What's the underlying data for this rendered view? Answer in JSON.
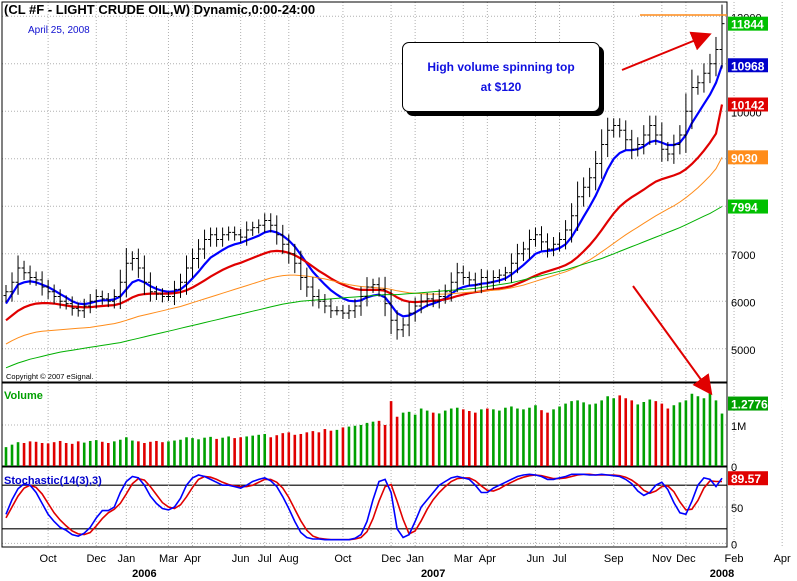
{
  "chart_data": {
    "type": "ohlc",
    "title": "(CL #F - LIGHT CRUDE OIL,W) Dynamic,0:00-24:00",
    "date_label": "April 25, 2008",
    "copyright": "Copyright © 2007 eSignal.",
    "annotation": [
      "High volume spinning top",
      "at $120"
    ],
    "price_panel": {
      "ylim": [
        4300,
        12300
      ],
      "yticks": [
        5000,
        6000,
        7000,
        8000,
        9000,
        10000,
        11000,
        12000
      ],
      "last_labels": [
        {
          "text": "11844",
          "value": 11844,
          "color": "#00c000"
        },
        {
          "text": "10968",
          "value": 10968,
          "color": "#0000cc"
        },
        {
          "text": "10142",
          "value": 10142,
          "color": "#e00000"
        },
        {
          "text": "9030",
          "value": 9030,
          "color": "#ff8c1a"
        },
        {
          "text": "7994",
          "value": 7994,
          "color": "#00c000"
        }
      ],
      "resistance_level": 12000,
      "series": [
        {
          "name": "close",
          "color": "#000000",
          "values": [
            6200,
            6400,
            6700,
            6600,
            6500,
            6450,
            6300,
            6200,
            6100,
            6000,
            5950,
            5850,
            5800,
            5900,
            6000,
            6100,
            6050,
            6000,
            6100,
            6400,
            6800,
            6900,
            6700,
            6400,
            6200,
            6150,
            6100,
            6100,
            6250,
            6400,
            6700,
            6900,
            7100,
            7300,
            7400,
            7300,
            7400,
            7450,
            7400,
            7350,
            7500,
            7550,
            7600,
            7700,
            7600,
            7400,
            7200,
            7000,
            6800,
            6500,
            6300,
            6100,
            6000,
            5900,
            5800,
            5800,
            5750,
            5800,
            5900,
            6100,
            6300,
            6350,
            6250,
            5950,
            5600,
            5400,
            5500,
            5750,
            5900,
            6000,
            6050,
            6000,
            6100,
            6200,
            6400,
            6600,
            6500,
            6450,
            6350,
            6500,
            6400,
            6500,
            6550,
            6600,
            6800,
            7000,
            7100,
            7300,
            7400,
            7250,
            7100,
            7200,
            7300,
            7500,
            7800,
            8200,
            8400,
            8600,
            8900,
            9300,
            9600,
            9700,
            9600,
            9400,
            9200,
            9300,
            9500,
            9700,
            9500,
            9200,
            9100,
            9300,
            9500,
            10000,
            10500,
            10600,
            10800,
            11000,
            11300,
            11844
          ]
        },
        {
          "name": "ema-fast",
          "color": "#0000ff",
          "values": [
            5950,
            6150,
            6350,
            6400,
            6420,
            6400,
            6350,
            6300,
            6230,
            6150,
            6080,
            6000,
            5950,
            5940,
            5960,
            6000,
            6020,
            6020,
            6040,
            6100,
            6250,
            6400,
            6450,
            6400,
            6320,
            6260,
            6220,
            6200,
            6210,
            6250,
            6350,
            6480,
            6620,
            6780,
            6920,
            7000,
            7080,
            7150,
            7200,
            7230,
            7280,
            7330,
            7380,
            7450,
            7480,
            7450,
            7380,
            7280,
            7150,
            6980,
            6800,
            6620,
            6480,
            6350,
            6230,
            6140,
            6060,
            6010,
            6000,
            6020,
            6080,
            6120,
            6140,
            6080,
            5920,
            5750,
            5680,
            5700,
            5760,
            5840,
            5910,
            5950,
            6000,
            6060,
            6150,
            6250,
            6300,
            6330,
            6340,
            6370,
            6380,
            6410,
            6440,
            6480,
            6560,
            6660,
            6760,
            6880,
            7000,
            7050,
            7060,
            7080,
            7120,
            7200,
            7350,
            7560,
            7780,
            7990,
            8220,
            8500,
            8780,
            9000,
            9120,
            9180,
            9180,
            9200,
            9260,
            9350,
            9380,
            9340,
            9290,
            9290,
            9340,
            9500,
            9750,
            9950,
            10150,
            10350,
            10600,
            10968
          ]
        },
        {
          "name": "ema-slow",
          "color": "#e00000",
          "values": [
            5600,
            5700,
            5800,
            5870,
            5920,
            5950,
            5960,
            5960,
            5950,
            5930,
            5910,
            5890,
            5880,
            5870,
            5875,
            5890,
            5900,
            5910,
            5920,
            5950,
            6010,
            6080,
            6130,
            6150,
            6160,
            6160,
            6160,
            6160,
            6170,
            6190,
            6230,
            6290,
            6360,
            6440,
            6520,
            6590,
            6660,
            6720,
            6770,
            6810,
            6860,
            6910,
            6960,
            7010,
            7050,
            7060,
            7050,
            7020,
            6970,
            6900,
            6820,
            6730,
            6640,
            6560,
            6480,
            6410,
            6350,
            6300,
            6260,
            6240,
            6240,
            6240,
            6240,
            6220,
            6160,
            6080,
            6020,
            5990,
            5980,
            5990,
            6000,
            6010,
            6020,
            6040,
            6070,
            6110,
            6140,
            6170,
            6190,
            6210,
            6230,
            6250,
            6270,
            6290,
            6320,
            6370,
            6420,
            6480,
            6540,
            6590,
            6630,
            6670,
            6710,
            6760,
            6830,
            6930,
            7050,
            7180,
            7330,
            7500,
            7680,
            7850,
            7990,
            8100,
            8190,
            8270,
            8350,
            8440,
            8520,
            8570,
            8610,
            8650,
            8700,
            8780,
            8890,
            9020,
            9170,
            9340,
            9530,
            10142
          ]
        },
        {
          "name": "ma-medium",
          "color": "#ff8c1a",
          "values": [
            5100,
            5170,
            5230,
            5280,
            5320,
            5350,
            5370,
            5380,
            5390,
            5400,
            5410,
            5420,
            5430,
            5440,
            5450,
            5470,
            5490,
            5510,
            5530,
            5560,
            5600,
            5640,
            5680,
            5710,
            5740,
            5770,
            5800,
            5830,
            5860,
            5890,
            5930,
            5970,
            6010,
            6050,
            6090,
            6130,
            6170,
            6210,
            6250,
            6290,
            6330,
            6370,
            6410,
            6450,
            6490,
            6520,
            6540,
            6550,
            6550,
            6540,
            6530,
            6510,
            6490,
            6470,
            6440,
            6410,
            6380,
            6350,
            6330,
            6310,
            6300,
            6290,
            6280,
            6270,
            6250,
            6220,
            6200,
            6180,
            6170,
            6160,
            6150,
            6150,
            6150,
            6150,
            6160,
            6170,
            6180,
            6190,
            6200,
            6210,
            6220,
            6230,
            6240,
            6260,
            6280,
            6310,
            6340,
            6380,
            6420,
            6460,
            6500,
            6540,
            6580,
            6620,
            6670,
            6730,
            6800,
            6870,
            6950,
            7040,
            7130,
            7220,
            7310,
            7400,
            7480,
            7560,
            7640,
            7720,
            7800,
            7870,
            7940,
            8010,
            8090,
            8180,
            8280,
            8390,
            8510,
            8640,
            8790,
            9030
          ]
        },
        {
          "name": "ma-long",
          "color": "#00b000",
          "values": [
            4600,
            4650,
            4700,
            4740,
            4780,
            4810,
            4840,
            4870,
            4900,
            4930,
            4950,
            4970,
            4990,
            5010,
            5030,
            5050,
            5070,
            5090,
            5110,
            5130,
            5160,
            5190,
            5220,
            5250,
            5280,
            5310,
            5340,
            5370,
            5400,
            5430,
            5460,
            5490,
            5520,
            5550,
            5580,
            5610,
            5640,
            5670,
            5700,
            5730,
            5760,
            5790,
            5820,
            5850,
            5880,
            5910,
            5940,
            5960,
            5980,
            6000,
            6010,
            6020,
            6030,
            6040,
            6050,
            6060,
            6070,
            6080,
            6090,
            6100,
            6110,
            6120,
            6130,
            6140,
            6140,
            6140,
            6150,
            6160,
            6170,
            6180,
            6190,
            6200,
            6210,
            6220,
            6230,
            6240,
            6250,
            6260,
            6270,
            6290,
            6310,
            6330,
            6350,
            6370,
            6390,
            6420,
            6450,
            6480,
            6510,
            6540,
            6570,
            6600,
            6630,
            6660,
            6700,
            6740,
            6780,
            6820,
            6860,
            6900,
            6950,
            7000,
            7050,
            7100,
            7150,
            7200,
            7250,
            7300,
            7350,
            7400,
            7450,
            7500,
            7550,
            7610,
            7670,
            7730,
            7790,
            7850,
            7920,
            7994
          ]
        }
      ]
    },
    "volume_panel": {
      "label": "Volume",
      "ylim": [
        0,
        1900000
      ],
      "yticks": [
        {
          "text": "1M",
          "value": 1000000
        },
        {
          "text": "0",
          "value": 0
        }
      ],
      "last_label": "1.277645M",
      "values": [
        460000,
        520000,
        580000,
        560000,
        600000,
        590000,
        560000,
        550000,
        580000,
        610000,
        560000,
        540000,
        600000,
        570000,
        610000,
        630000,
        590000,
        560000,
        600000,
        640000,
        700000,
        620000,
        600000,
        560000,
        590000,
        610000,
        580000,
        600000,
        620000,
        640000,
        700000,
        680000,
        650000,
        690000,
        710000,
        660000,
        690000,
        720000,
        680000,
        700000,
        720000,
        740000,
        760000,
        780000,
        700000,
        750000,
        800000,
        820000,
        760000,
        780000,
        820000,
        850000,
        820000,
        900000,
        860000,
        880000,
        940000,
        960000,
        980000,
        1000000,
        1050000,
        1080000,
        1100000,
        1000000,
        1580000,
        1200000,
        1300000,
        1320000,
        1250000,
        1400000,
        1350000,
        1300000,
        1280000,
        1350000,
        1400000,
        1420000,
        1380000,
        1340000,
        1300000,
        1380000,
        1400000,
        1380000,
        1350000,
        1420000,
        1450000,
        1400000,
        1380000,
        1420000,
        1480000,
        1360000,
        1300000,
        1380000,
        1450000,
        1520000,
        1580000,
        1600000,
        1550000,
        1500000,
        1520000,
        1600000,
        1700000,
        1650000,
        1720000,
        1650000,
        1600000,
        1500000,
        1560000,
        1620000,
        1580000,
        1520000,
        1400000,
        1480000,
        1550000,
        1600000,
        1760000,
        1700000,
        1650000,
        1780000,
        1600000,
        1277645
      ],
      "up_color": "#00a000",
      "down_color": "#e00000"
    },
    "stochastic_panel": {
      "label": "Stochastic(14(3),3)",
      "ylim": [
        -5,
        105
      ],
      "yticks": [
        0,
        50
      ],
      "levels": [
        80,
        20
      ],
      "last_label": "89.57",
      "k": [
        40,
        60,
        75,
        82,
        80,
        70,
        55,
        40,
        30,
        22,
        18,
        12,
        10,
        14,
        22,
        35,
        45,
        45,
        50,
        70,
        85,
        92,
        90,
        80,
        65,
        55,
        48,
        46,
        50,
        62,
        80,
        90,
        94,
        92,
        88,
        84,
        80,
        80,
        78,
        76,
        80,
        85,
        88,
        90,
        86,
        78,
        64,
        48,
        30,
        15,
        8,
        6,
        6,
        5,
        5,
        5,
        5,
        5,
        7,
        12,
        30,
        60,
        85,
        88,
        70,
        20,
        8,
        12,
        30,
        50,
        60,
        70,
        80,
        85,
        90,
        92,
        90,
        88,
        80,
        70,
        70,
        76,
        80,
        84,
        88,
        92,
        94,
        95,
        94,
        92,
        88,
        88,
        90,
        92,
        95,
        95,
        95,
        94,
        94,
        95,
        94,
        93,
        92,
        88,
        82,
        72,
        66,
        70,
        80,
        84,
        74,
        56,
        42,
        40,
        58,
        80,
        90,
        88,
        78,
        89.57
      ],
      "d": [
        35,
        50,
        65,
        76,
        80,
        77,
        68,
        55,
        42,
        32,
        24,
        17,
        13,
        12,
        15,
        24,
        34,
        42,
        47,
        55,
        68,
        82,
        89,
        87,
        78,
        67,
        56,
        50,
        48,
        53,
        64,
        77,
        88,
        92,
        91,
        88,
        84,
        81,
        79,
        78,
        78,
        80,
        84,
        88,
        88,
        84,
        76,
        63,
        47,
        31,
        18,
        10,
        7,
        6,
        5,
        5,
        5,
        5,
        6,
        8,
        16,
        34,
        58,
        78,
        81,
        58,
        33,
        13,
        17,
        31,
        47,
        60,
        70,
        78,
        85,
        89,
        90,
        90,
        86,
        79,
        73,
        72,
        75,
        80,
        84,
        88,
        91,
        93,
        94,
        93,
        91,
        89,
        89,
        90,
        92,
        94,
        95,
        95,
        94,
        94,
        94,
        94,
        93,
        91,
        87,
        81,
        73,
        69,
        72,
        78,
        79,
        71,
        57,
        46,
        47,
        59,
        76,
        86,
        85,
        85
      ]
    },
    "x_axis": {
      "month_ticks": [
        {
          "label": "Oct",
          "index": 7
        },
        {
          "label": "Dec",
          "index": 15
        },
        {
          "label": "Jan",
          "index": 20
        },
        {
          "label": "Mar",
          "index": 27
        },
        {
          "label": "Apr",
          "index": 31
        },
        {
          "label": "Jun",
          "index": 39
        },
        {
          "label": "Jul",
          "index": 43
        },
        {
          "label": "Aug",
          "index": 47
        },
        {
          "label": "Oct",
          "index": 56
        },
        {
          "label": "Dec",
          "index": 64
        },
        {
          "label": "Jan",
          "index": 68
        },
        {
          "label": "Mar",
          "index": 76
        },
        {
          "label": "Apr",
          "index": 80
        },
        {
          "label": "Jun",
          "index": 88
        },
        {
          "label": "Jul",
          "index": 92
        },
        {
          "label": "Sep",
          "index": 101
        },
        {
          "label": "Nov",
          "index": 109
        },
        {
          "label": "Dec",
          "index": 113
        },
        {
          "label": "Feb",
          "index": 121
        },
        {
          "label": "Apr",
          "index": 129
        }
      ],
      "year_labels": [
        {
          "label": "2006",
          "index": 23
        },
        {
          "label": "2007",
          "index": 71
        },
        {
          "label": "2008",
          "index": 119
        }
      ]
    },
    "grid": true
  }
}
